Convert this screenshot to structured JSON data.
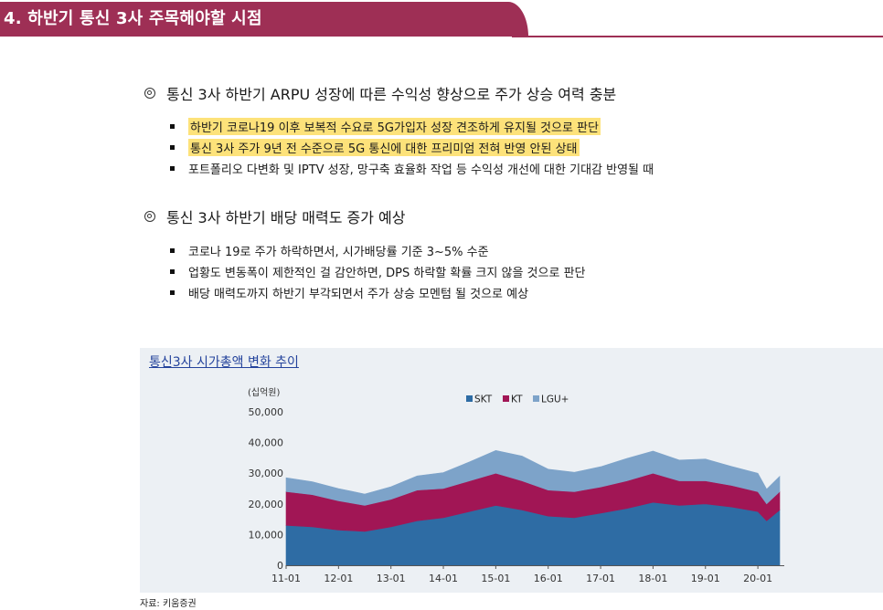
{
  "header": {
    "title": "4. 하반기 통신 3사 주목해야할 시점",
    "color": "#9e2f55"
  },
  "section1": {
    "heading": "통신 3사 하반기 ARPU 성장에 따른 수익성 향상으로 주가 상승 여력 충분",
    "bullets": [
      {
        "text": "하반기 코로나19 이후 보복적 수요로 5G가입자 성장 견조하게 유지될 것으로 판단",
        "highlight": true
      },
      {
        "text": "통신 3사 주가 9년 전 수준으로 5G 통신에 대한 프리미엄 전혀 반영 안된 상태",
        "highlight": true
      },
      {
        "text": "포트폴리오 다변화 및 IPTV 성장, 망구축 효율화 작업 등 수익성 개선에 대한 기대감 반영될 때",
        "highlight": false
      }
    ]
  },
  "section2": {
    "heading": "통신 3사 하반기 배당 매력도 증가 예상",
    "bullets": [
      {
        "text": "코로나 19로 주가 하락하면서, 시가배당률 기준 3~5% 수준"
      },
      {
        "text": "업황도 변동폭이 제한적인 걸 감안하면, DPS 하락할 확률 크지 않을 것으로 판단"
      },
      {
        "text": "배당 매력도까지 하반기 부각되면서 주가 상승 모멘텀 될 것으로 예상"
      }
    ]
  },
  "chart_title": "통신3사 시가총액 변화 추이",
  "source": "자료: 키움증권",
  "chart_data": {
    "type": "area",
    "stacked": true,
    "title": "통신3사 시가총액 변화 추이",
    "ylabel": "(십억원)",
    "ylim": [
      0,
      50000
    ],
    "yticks": [
      0,
      10000,
      20000,
      30000,
      40000,
      50000
    ],
    "ytick_labels": [
      "0",
      "10,000",
      "20,000",
      "30,000",
      "40,000",
      "50,000"
    ],
    "x": [
      "11-01",
      "11-07",
      "12-01",
      "12-07",
      "13-01",
      "13-07",
      "14-01",
      "14-07",
      "15-01",
      "15-07",
      "16-01",
      "16-07",
      "17-01",
      "17-07",
      "18-01",
      "18-07",
      "19-01",
      "19-07",
      "20-01",
      "20-03",
      "20-06"
    ],
    "xtick_labels": [
      "11-01",
      "12-01",
      "13-01",
      "14-01",
      "15-01",
      "16-01",
      "17-01",
      "18-01",
      "19-01",
      "20-01"
    ],
    "series": [
      {
        "name": "SKT",
        "color": "#2e6ca4",
        "values": [
          13000,
          12500,
          11500,
          11000,
          12500,
          14500,
          15500,
          17500,
          19500,
          18000,
          16000,
          15500,
          17000,
          18500,
          20500,
          19500,
          20000,
          19000,
          17500,
          14500,
          18000
        ]
      },
      {
        "name": "KT",
        "color": "#a11655",
        "values": [
          11000,
          10500,
          9500,
          8500,
          9000,
          10000,
          9500,
          10000,
          10500,
          9500,
          8500,
          8500,
          8500,
          9000,
          9500,
          8000,
          7500,
          7000,
          6500,
          5500,
          6000
        ]
      },
      {
        "name": "LGU+",
        "color": "#7da3c9",
        "values": [
          4500,
          4200,
          4000,
          3700,
          4100,
          4600,
          5200,
          6200,
          7400,
          8100,
          6800,
          6300,
          6600,
          7300,
          7200,
          6800,
          7100,
          6200,
          6000,
          4800,
          5000
        ]
      }
    ]
  }
}
